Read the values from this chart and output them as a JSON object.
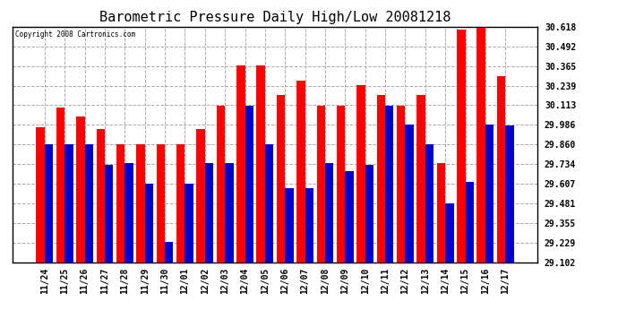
{
  "title": "Barometric Pressure Daily High/Low 20081218",
  "copyright": "Copyright 2008 Cartronics.com",
  "dates": [
    "11/24",
    "11/25",
    "11/26",
    "11/27",
    "11/28",
    "11/29",
    "11/30",
    "12/01",
    "12/02",
    "12/03",
    "12/04",
    "12/05",
    "12/06",
    "12/07",
    "12/08",
    "12/09",
    "12/10",
    "12/11",
    "12/12",
    "12/13",
    "12/14",
    "12/15",
    "12/16",
    "12/17"
  ],
  "highs": [
    29.97,
    30.1,
    30.04,
    29.96,
    29.86,
    29.86,
    29.86,
    29.86,
    29.96,
    30.11,
    30.37,
    30.37,
    30.18,
    30.27,
    30.11,
    30.11,
    30.24,
    30.18,
    30.11,
    30.18,
    29.74,
    30.6,
    30.61,
    30.3
  ],
  "lows": [
    29.86,
    29.86,
    29.86,
    29.73,
    29.74,
    29.61,
    29.23,
    29.61,
    29.74,
    29.74,
    30.11,
    29.86,
    29.58,
    29.58,
    29.74,
    29.69,
    29.73,
    30.11,
    29.99,
    29.86,
    29.48,
    29.62,
    29.99,
    29.98
  ],
  "ylim": [
    29.102,
    30.618
  ],
  "yticks": [
    29.102,
    29.229,
    29.355,
    29.481,
    29.607,
    29.734,
    29.86,
    29.986,
    30.113,
    30.239,
    30.365,
    30.492,
    30.618
  ],
  "bar_color_high": "#ff0000",
  "bar_color_low": "#0000cc",
  "bg_color": "#ffffff",
  "grid_color": "#aaaaaa",
  "title_fontsize": 11,
  "tick_fontsize": 7
}
